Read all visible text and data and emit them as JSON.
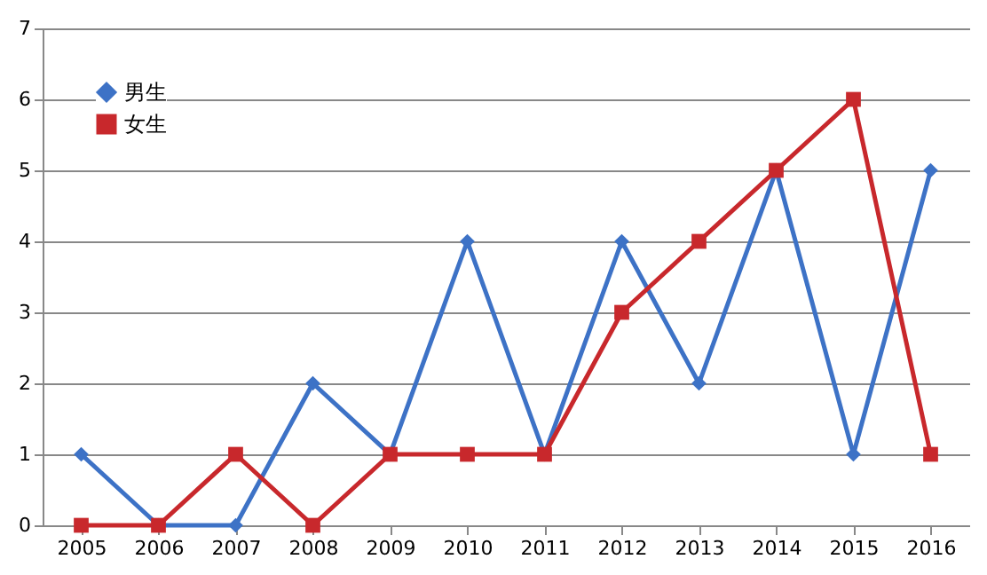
{
  "chart_data": {
    "type": "line",
    "categories": [
      "2005",
      "2006",
      "2007",
      "2008",
      "2009",
      "2010",
      "2011",
      "2012",
      "2013",
      "2014",
      "2015",
      "2016"
    ],
    "series": [
      {
        "name": "男生",
        "color": "#3d72c6",
        "marker": "diamond",
        "values": [
          1,
          0,
          0,
          2,
          1,
          4,
          1,
          4,
          2,
          5,
          1,
          5
        ]
      },
      {
        "name": "女生",
        "color": "#c8282c",
        "marker": "square",
        "values": [
          0,
          0,
          1,
          0,
          1,
          1,
          1,
          3,
          4,
          5,
          6,
          1
        ]
      }
    ],
    "ylim": [
      0,
      7
    ],
    "yticks": [
      0,
      1,
      2,
      3,
      4,
      5,
      6,
      7
    ],
    "grid": "y",
    "legend": "top left",
    "line_style": "solid"
  }
}
